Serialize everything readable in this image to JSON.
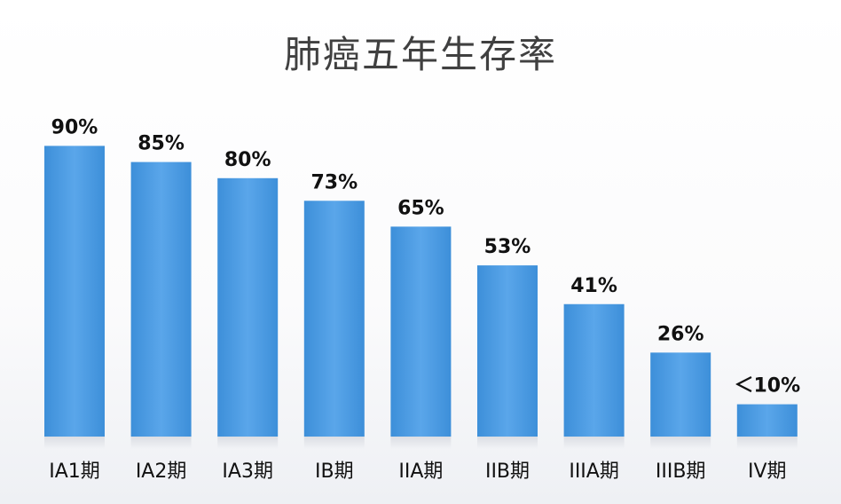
{
  "chart_data": {
    "type": "bar",
    "title": "肺癌五年生存率",
    "categories": [
      "IA1期",
      "IA2期",
      "IA3期",
      "IB期",
      "IIA期",
      "IIB期",
      "IIIA期",
      "IIIB期",
      "IV期"
    ],
    "values": [
      90,
      85,
      80,
      73,
      65,
      53,
      41,
      26,
      10
    ],
    "value_labels": [
      "90%",
      "85%",
      "80%",
      "73%",
      "65%",
      "53%",
      "41%",
      "26%",
      "＜10%"
    ],
    "ylim": [
      0,
      100
    ],
    "grid": false,
    "legend": "none",
    "bar_color": "#3d8fd9",
    "bar_color_light": "#5aa6ea",
    "label_color": "#111111"
  }
}
